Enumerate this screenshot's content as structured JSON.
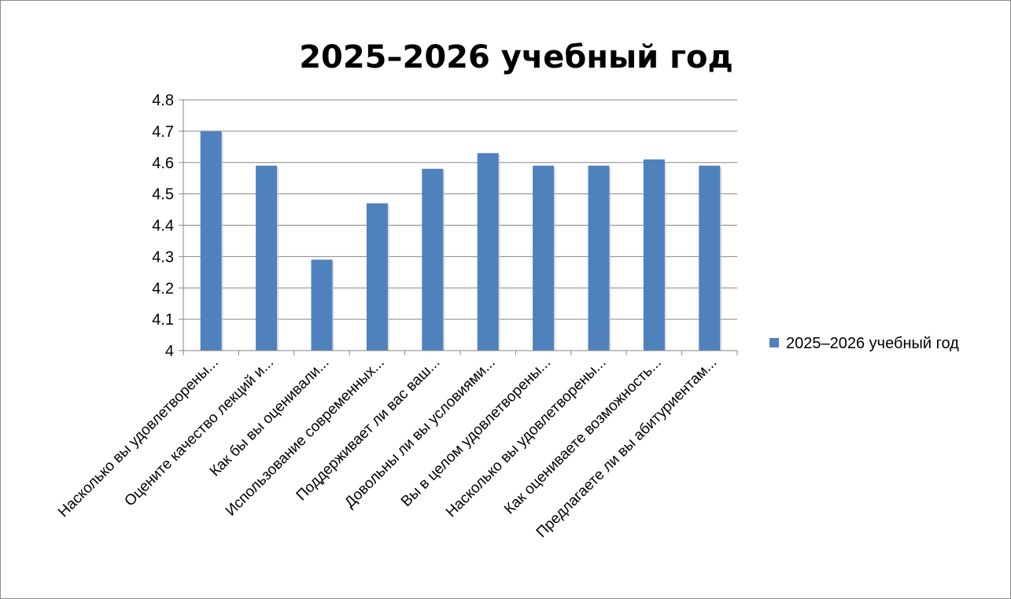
{
  "chart_data": {
    "type": "bar",
    "title": "2025–2026 учебный год",
    "xlabel": "",
    "ylabel": "",
    "ylim": [
      4,
      4.8
    ],
    "yticks": [
      "4",
      "4.1",
      "4.2",
      "4.3",
      "4.4",
      "4.5",
      "4.6",
      "4.7",
      "4.8"
    ],
    "grid": true,
    "legend_position": "right",
    "categories": [
      "Насколько вы удовлетворены...",
      "Оцените качество лекций и...",
      "Как бы вы оценивали...",
      "Использование современных...",
      "Поддерживает ли вас ваш...",
      "Довольны ли вы условиями...",
      "Вы в целом удовлетворены...",
      "Насколько вы удовлетворены...",
      "Как оцениваете возможность...",
      "Предлагаете ли вы абитуриентам..."
    ],
    "series": [
      {
        "name": "2025–2026 учебный год",
        "color": "#4f81bd",
        "values": [
          4.7,
          4.59,
          4.29,
          4.47,
          4.58,
          4.63,
          4.59,
          4.59,
          4.61,
          4.59
        ]
      }
    ]
  }
}
